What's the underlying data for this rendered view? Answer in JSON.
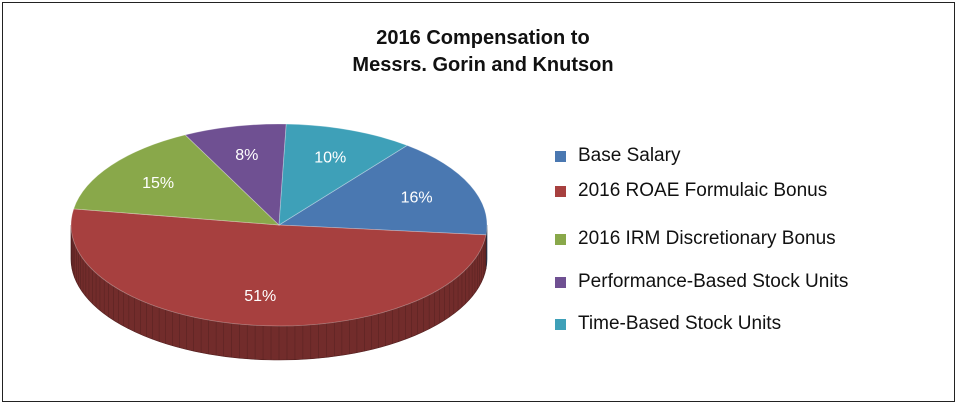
{
  "chart_data": {
    "type": "pie",
    "title_lines": [
      "2016 Compensation to",
      "Messrs. Gorin and Knutson"
    ],
    "slices": [
      {
        "name": "Base Salary",
        "value": 16,
        "label": "16%",
        "color": "#4a78b1"
      },
      {
        "name": "2016 ROAE Formulaic Bonus",
        "value": 51,
        "label": "51%",
        "color": "#a7403f"
      },
      {
        "name": "2016 IRM Discretionary Bonus",
        "value": 15,
        "label": "15%",
        "color": "#89a84a"
      },
      {
        "name": "Performance-Based Stock Units",
        "value": 8,
        "label": "8%",
        "color": "#6f5092"
      },
      {
        "name": "Time-Based Stock Units",
        "value": 10,
        "label": "10%",
        "color": "#3ea0b8"
      }
    ],
    "legend_position": "right",
    "style": "3d-pie"
  }
}
